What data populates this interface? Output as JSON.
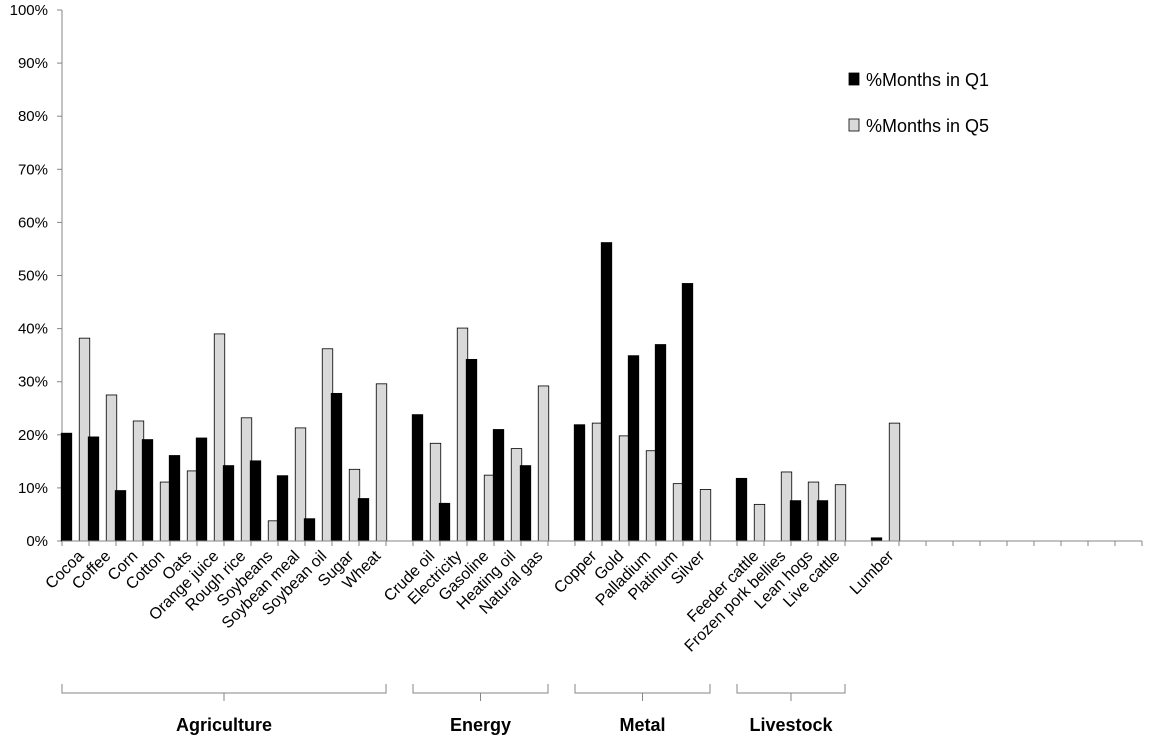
{
  "chart_data": {
    "type": "bar",
    "yticks": [
      "0%",
      "10%",
      "20%",
      "30%",
      "40%",
      "50%",
      "60%",
      "70%",
      "80%",
      "90%",
      "100%"
    ],
    "ylim": [
      0,
      100
    ],
    "grid": false,
    "legend_position": "top-right",
    "colors": {
      "q1": "#000000",
      "q5": "#d9d9d9",
      "stroke": "#000000",
      "axis": "#868686"
    },
    "series": [
      {
        "name": "%Months in Q1",
        "key": "q1"
      },
      {
        "name": "%Months in Q5",
        "key": "q5"
      }
    ],
    "groups": [
      {
        "label": "Agriculture",
        "items": [
          {
            "name": "Cocoa",
            "q1": 20.3,
            "q5": 38.2
          },
          {
            "name": "Coffee",
            "q1": 19.6,
            "q5": 27.5
          },
          {
            "name": "Corn",
            "q1": 9.5,
            "q5": 22.6
          },
          {
            "name": "Cotton",
            "q1": 19.1,
            "q5": 11.1
          },
          {
            "name": "Oats",
            "q1": 16.1,
            "q5": 13.2
          },
          {
            "name": "Orange juice",
            "q1": 19.4,
            "q5": 39.0
          },
          {
            "name": "Rough rice",
            "q1": 14.2,
            "q5": 23.2
          },
          {
            "name": "Soybeans",
            "q1": 15.1,
            "q5": 3.8
          },
          {
            "name": "Soybean meal",
            "q1": 12.3,
            "q5": 21.3
          },
          {
            "name": "Soybean oil",
            "q1": 4.2,
            "q5": 36.2
          },
          {
            "name": "Sugar",
            "q1": 27.8,
            "q5": 13.5
          },
          {
            "name": "Wheat",
            "q1": 8.0,
            "q5": 29.6
          }
        ]
      },
      {
        "label": "Energy",
        "items": [
          {
            "name": "Crude oil",
            "q1": 23.8,
            "q5": 18.4
          },
          {
            "name": "Electricity",
            "q1": 7.1,
            "q5": 40.1
          },
          {
            "name": "Gasoline",
            "q1": 34.2,
            "q5": 12.4
          },
          {
            "name": "Heating oil",
            "q1": 21.0,
            "q5": 17.4
          },
          {
            "name": "Natural gas",
            "q1": 14.2,
            "q5": 29.2
          }
        ]
      },
      {
        "label": "Metal",
        "items": [
          {
            "name": "Copper",
            "q1": 21.9,
            "q5": 22.2
          },
          {
            "name": "Gold",
            "q1": 56.2,
            "q5": 19.8
          },
          {
            "name": "Palladium",
            "q1": 34.9,
            "q5": 17.0
          },
          {
            "name": "Platinum",
            "q1": 37.0,
            "q5": 10.8
          },
          {
            "name": "Silver",
            "q1": 48.5,
            "q5": 9.7
          }
        ]
      },
      {
        "label": "Livestock",
        "items": [
          {
            "name": "Feeder cattle",
            "q1": 11.8,
            "q5": 6.9
          },
          {
            "name": "Frozen pork bellies",
            "q1": 0,
            "q5": 13.0
          },
          {
            "name": "Lean hogs",
            "q1": 7.6,
            "q5": 11.1
          },
          {
            "name": "Live cattle",
            "q1": 7.6,
            "q5": 10.6
          }
        ]
      },
      {
        "label": "",
        "items": [
          {
            "name": "Lumber",
            "q1": 0.6,
            "q5": 22.2
          }
        ]
      }
    ]
  }
}
